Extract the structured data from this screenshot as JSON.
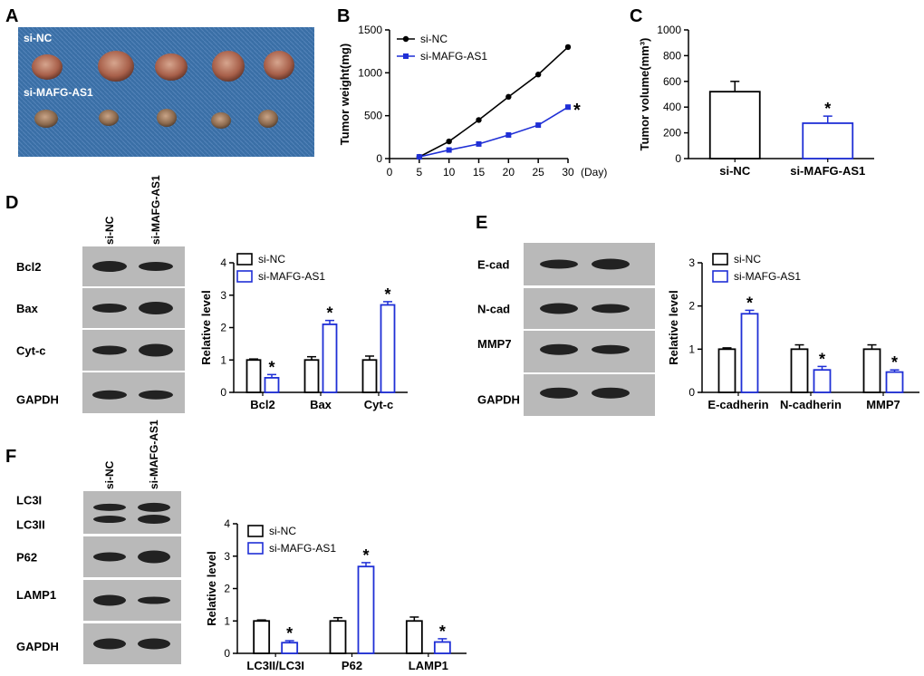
{
  "panels": {
    "A": {
      "letter": "A",
      "labels": [
        "si-NC",
        "si-MAFG-AS1"
      ]
    },
    "B": {
      "letter": "B"
    },
    "C": {
      "letter": "C"
    },
    "D": {
      "letter": "D",
      "lanes": [
        "si-NC",
        "si-MAFG-AS1"
      ],
      "rows": [
        "Bcl2",
        "Bax",
        "Cyt-c",
        "GAPDH"
      ]
    },
    "E": {
      "letter": "E",
      "lanes": [],
      "rows": [
        "E-cad",
        "N-cad",
        "MMP7",
        "GAPDH"
      ]
    },
    "F": {
      "letter": "F",
      "lanes": [
        "si-NC",
        "si-MAFG-AS1"
      ],
      "rows": [
        "LC3I",
        "LC3II",
        "P62",
        "LAMP1",
        "GAPDH"
      ]
    }
  },
  "colors": {
    "nc": "#000000",
    "si": "#1f2fd6"
  },
  "chart_data": [
    {
      "id": "B",
      "type": "line",
      "xlabel": "(Day)",
      "ylabel": "Tumor weight(mg)",
      "xlim": [
        0,
        30
      ],
      "ylim": [
        0,
        1500
      ],
      "xticks": [
        0,
        5,
        10,
        15,
        20,
        25,
        30
      ],
      "yticks": [
        0,
        500,
        1000,
        1500
      ],
      "legend": "top-left",
      "series": [
        {
          "name": "si-NC",
          "x": [
            5,
            10,
            15,
            20,
            25,
            30
          ],
          "values": [
            20,
            200,
            450,
            720,
            980,
            1300
          ]
        },
        {
          "name": "si-MAFG-AS1",
          "x": [
            5,
            10,
            15,
            20,
            25,
            30
          ],
          "values": [
            20,
            100,
            170,
            275,
            390,
            600
          ]
        }
      ],
      "annotations": [
        "*"
      ]
    },
    {
      "id": "C",
      "type": "bar",
      "ylabel": "Tumor volume(mm³)",
      "ylim": [
        0,
        1000
      ],
      "yticks": [
        0,
        200,
        400,
        600,
        800,
        1000
      ],
      "categories": [
        "si-NC",
        "si-MAFG-AS1"
      ],
      "values": [
        520,
        275
      ],
      "errors": [
        80,
        55
      ],
      "annotations": [
        "*"
      ]
    },
    {
      "id": "D",
      "type": "bar",
      "ylabel": "Relative level",
      "ylim": [
        0,
        4
      ],
      "yticks": [
        0,
        1,
        2,
        3,
        4
      ],
      "categories": [
        "Bcl2",
        "Bax",
        "Cyt-c"
      ],
      "legend": "top-left",
      "series": [
        {
          "name": "si-NC",
          "values": [
            1.0,
            1.0,
            1.0
          ],
          "errors": [
            0.03,
            0.1,
            0.12
          ]
        },
        {
          "name": "si-MAFG-AS1",
          "values": [
            0.45,
            2.1,
            2.7
          ],
          "errors": [
            0.1,
            0.12,
            0.1
          ]
        }
      ],
      "annotations": [
        "*"
      ]
    },
    {
      "id": "E",
      "type": "bar",
      "ylabel": "Relative level",
      "ylim": [
        0,
        3
      ],
      "yticks": [
        0,
        1,
        2,
        3
      ],
      "categories": [
        "E-cadherin",
        "N-cadherin",
        "MMP7"
      ],
      "legend": "top-left",
      "series": [
        {
          "name": "si-NC",
          "values": [
            1.0,
            1.0,
            1.0
          ],
          "errors": [
            0.03,
            0.1,
            0.1
          ]
        },
        {
          "name": "si-MAFG-AS1",
          "values": [
            1.82,
            0.52,
            0.47
          ],
          "errors": [
            0.08,
            0.08,
            0.05
          ]
        }
      ],
      "annotations": [
        "*"
      ]
    },
    {
      "id": "F",
      "type": "bar",
      "ylabel": "Relative level",
      "ylim": [
        0,
        4
      ],
      "yticks": [
        0,
        1,
        2,
        3,
        4
      ],
      "categories": [
        "LC3II/LC3I",
        "P62",
        "LAMP1"
      ],
      "legend": "top-left",
      "series": [
        {
          "name": "si-NC",
          "values": [
            1.0,
            1.0,
            1.0
          ],
          "errors": [
            0.03,
            0.1,
            0.12
          ]
        },
        {
          "name": "si-MAFG-AS1",
          "values": [
            0.33,
            2.68,
            0.35
          ],
          "errors": [
            0.06,
            0.12,
            0.1
          ]
        }
      ],
      "annotations": [
        "*"
      ]
    }
  ]
}
